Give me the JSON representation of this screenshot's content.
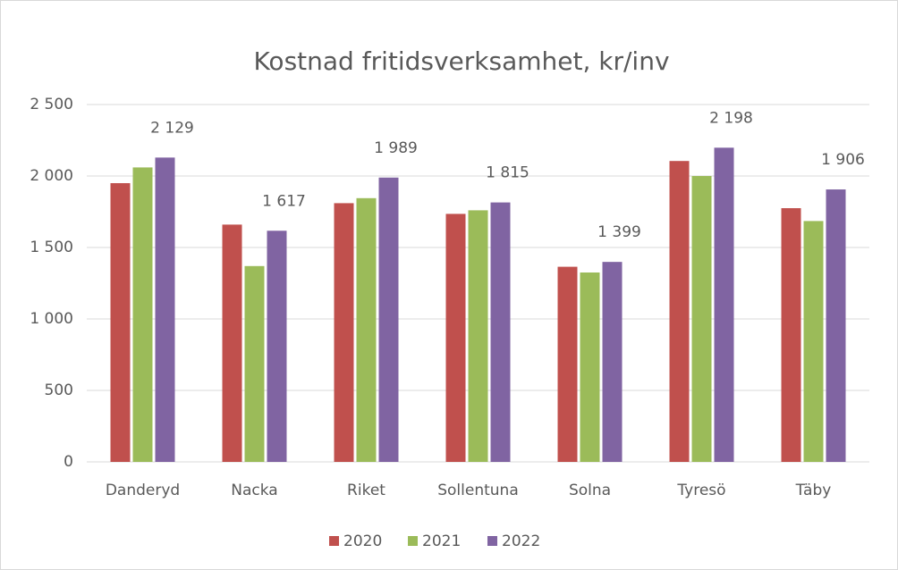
{
  "chart_data": {
    "type": "bar",
    "title": "Kostnad fritidsverksamhet, kr/inv",
    "categories": [
      "Danderyd",
      "Nacka",
      "Riket",
      "Sollentuna",
      "Solna",
      "Tyresö",
      "Täby"
    ],
    "series": [
      {
        "name": "2020",
        "color": "#c0504d",
        "values": [
          1950,
          1660,
          1810,
          1735,
          1365,
          2105,
          1775
        ]
      },
      {
        "name": "2021",
        "color": "#9bbb59",
        "values": [
          2060,
          1370,
          1845,
          1760,
          1325,
          2000,
          1685
        ]
      },
      {
        "name": "2022",
        "color": "#8064a2",
        "values": [
          2129,
          1617,
          1989,
          1815,
          1399,
          2198,
          1906
        ],
        "value_labels": [
          "2 129",
          "1 617",
          "1 989",
          "1 815",
          "1 399",
          "2 198",
          "1 906"
        ]
      }
    ],
    "ylim": [
      0,
      2500
    ],
    "yticks": [
      0,
      500,
      {
        "value": 1000,
        "label": "1 000"
      },
      {
        "value": 1500,
        "label": "1 500"
      },
      {
        "value": 2000,
        "label": "2 000"
      },
      {
        "value": 2500,
        "label": "2 500"
      }
    ],
    "grid": true,
    "legend": "bottom"
  }
}
